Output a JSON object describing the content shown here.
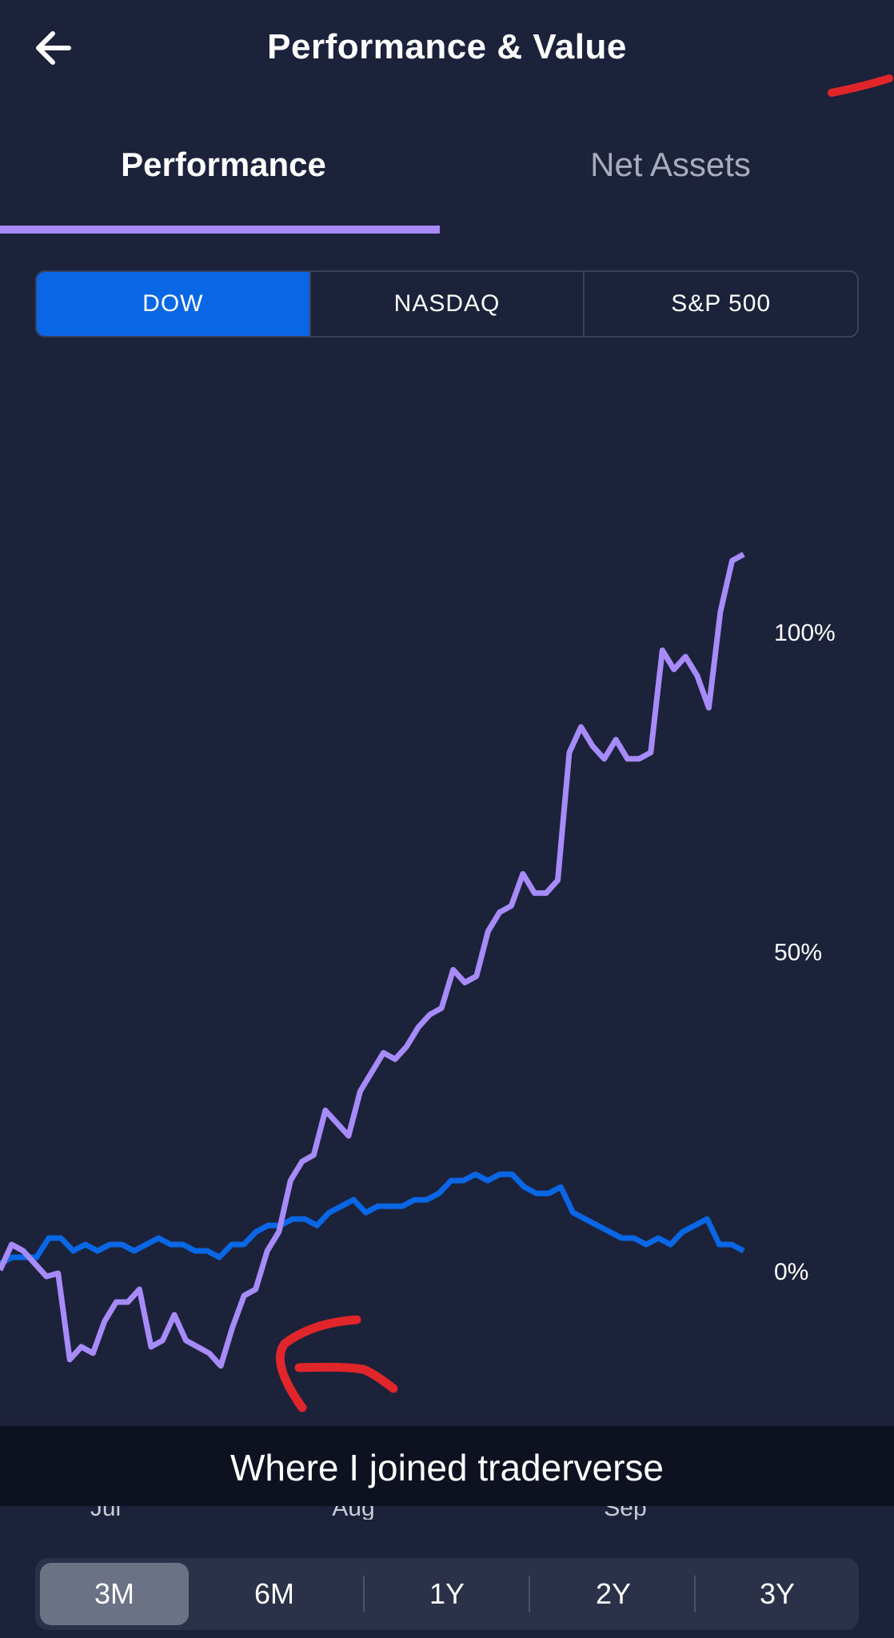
{
  "header": {
    "title": "Performance & Value",
    "back_icon": "arrow-left-icon"
  },
  "tabs": [
    {
      "label": "Performance",
      "active": true
    },
    {
      "label": "Net Assets",
      "active": false
    }
  ],
  "benchmarks": [
    {
      "label": "DOW",
      "selected": true
    },
    {
      "label": "NASDAQ",
      "selected": false
    },
    {
      "label": "S&P 500",
      "selected": false
    }
  ],
  "annotation": {
    "caption": "Where I joined traderverse",
    "marker_color": "#e0262b"
  },
  "chart_data": {
    "type": "line",
    "y_ticks": [
      "100%",
      "50%",
      "0%"
    ],
    "x_ticks": [
      "Jul",
      "Aug",
      "Sep"
    ],
    "ylim": [
      -20,
      110
    ],
    "series": [
      {
        "color": "#a78bfa",
        "values": [
          0,
          4,
          3,
          1,
          -1,
          -0.5,
          -14,
          -12,
          -13,
          -8,
          -5,
          -5,
          -3,
          -12,
          -11,
          -7,
          -11,
          -12,
          -13,
          -15,
          -9,
          -4,
          -3,
          3,
          6,
          14,
          17,
          18,
          25,
          23,
          21,
          28,
          31,
          34,
          33,
          35,
          38,
          40,
          41,
          47,
          45,
          46,
          53,
          56,
          57,
          62,
          59,
          59,
          61,
          81,
          85,
          82,
          80,
          83,
          80,
          80,
          81,
          97,
          94,
          96,
          93,
          88,
          103,
          111,
          112
        ]
      },
      {
        "color": "#0967e6",
        "values": [
          1,
          2,
          2,
          2,
          5,
          5,
          3,
          4,
          3,
          4,
          4,
          3,
          4,
          5,
          4,
          4,
          3,
          3,
          2,
          4,
          4,
          6,
          7,
          7,
          8,
          8,
          7,
          9,
          10,
          11,
          9,
          10,
          10,
          10,
          11,
          11,
          12,
          14,
          14,
          15,
          14,
          15,
          15,
          13,
          12,
          12,
          13,
          9,
          8,
          7,
          6,
          5,
          5,
          4,
          5,
          4,
          6,
          7,
          8,
          4,
          4,
          3
        ]
      }
    ]
  },
  "time_ranges": [
    {
      "label": "3M",
      "selected": true
    },
    {
      "label": "6M",
      "selected": false
    },
    {
      "label": "1Y",
      "selected": false
    },
    {
      "label": "2Y",
      "selected": false
    },
    {
      "label": "3Y",
      "selected": false
    }
  ]
}
